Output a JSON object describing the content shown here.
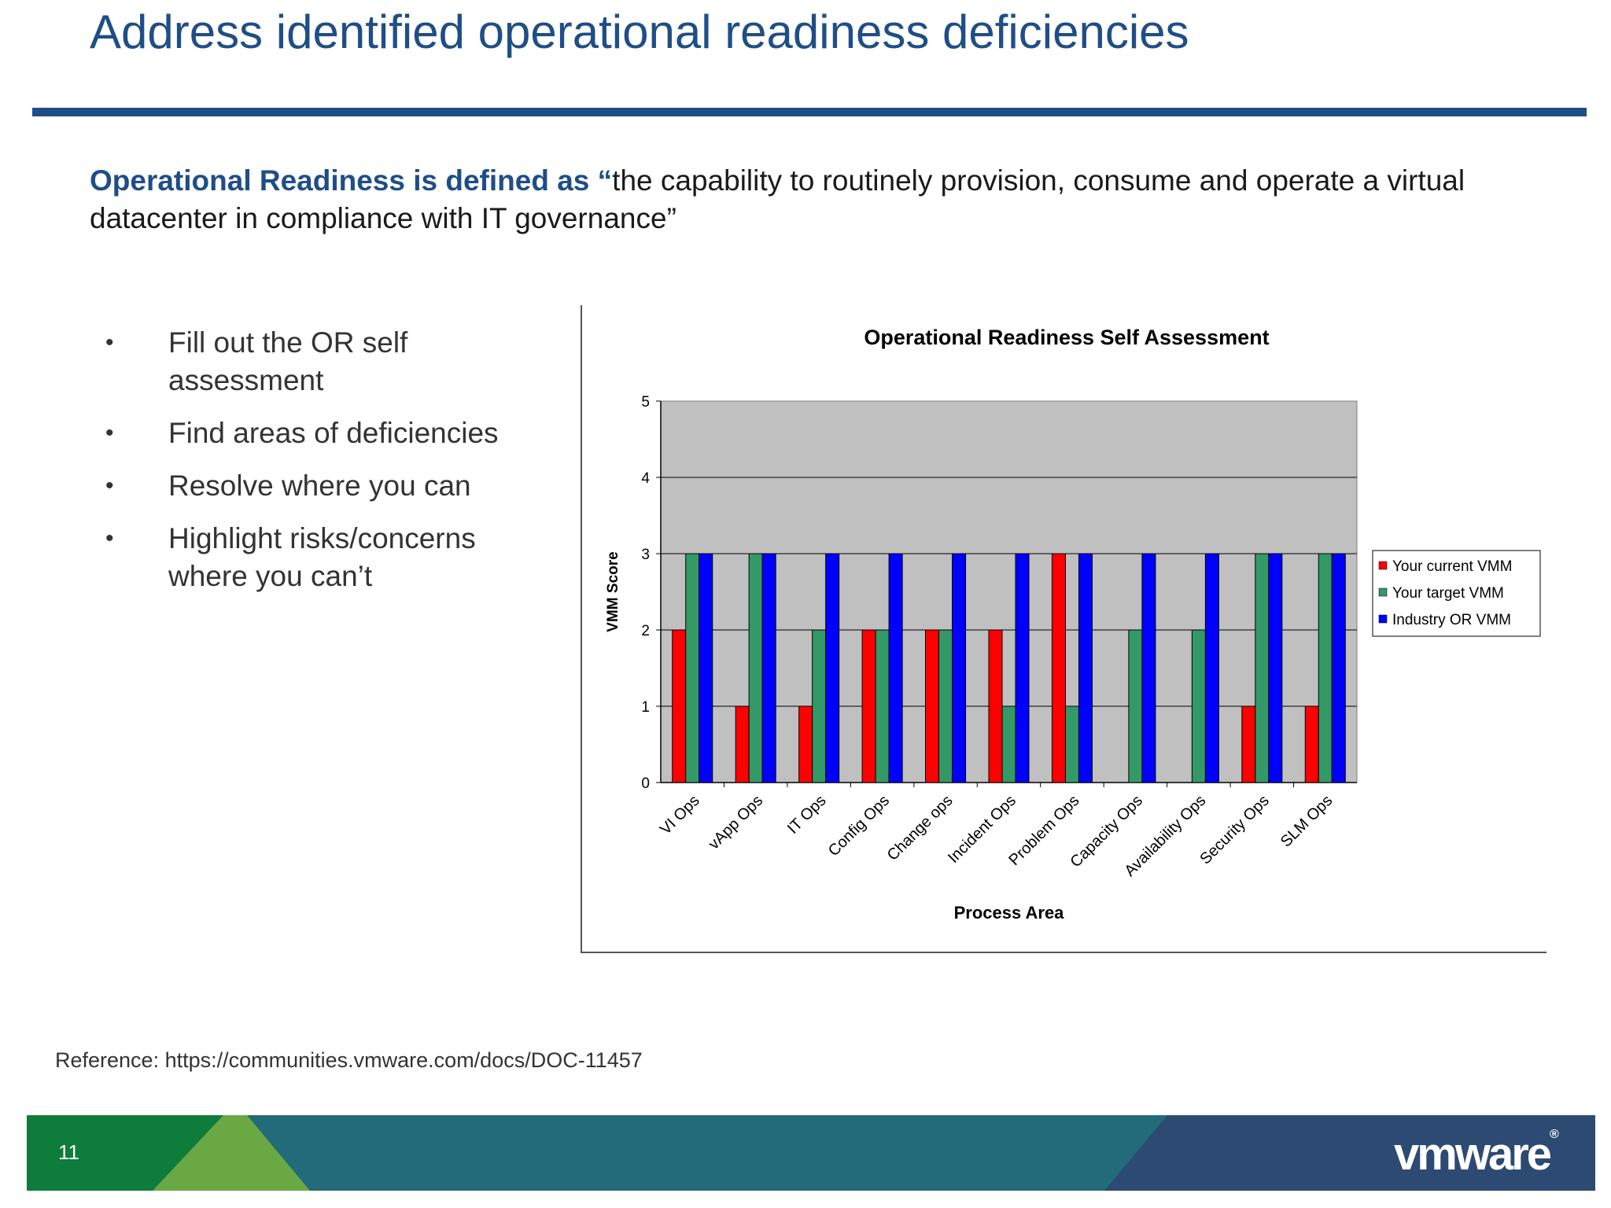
{
  "slide": {
    "title": "Address identified operational readiness deficiencies",
    "definition_lead": "Operational Readiness is defined as “",
    "definition_body": "the capability to routinely provision, consume and operate a virtual datacenter in compliance with IT governance”",
    "bullets": [
      "Fill out the OR self assessment",
      "Find areas of deficiencies",
      "Resolve where you can",
      "Highlight risks/concerns where you can’t"
    ],
    "bullet_symbol": "•",
    "reference": "Reference: https://communities.vmware.com/docs/DOC-11457",
    "page_number": "11",
    "logo": "vmware",
    "logo_mark": "®"
  },
  "colors": {
    "title_blue": "#1f4e87",
    "plot_bg": "#c0c0c0",
    "current": "#ff0000",
    "target": "#339966",
    "industry": "#0000ff"
  },
  "chart_data": {
    "type": "bar",
    "title": "Operational Readiness Self Assessment",
    "xlabel": "Process Area",
    "ylabel": "VMM Score",
    "ylim": [
      0,
      5
    ],
    "yticks": [
      0,
      1,
      2,
      3,
      4,
      5
    ],
    "grid": true,
    "legend": "right",
    "categories": [
      "VI Ops",
      "vApp Ops",
      "IT Ops",
      "Config Ops",
      "Change ops",
      "Incident Ops",
      "Problem Ops",
      "Capacity Ops",
      "Availability Ops",
      "Security Ops",
      "SLM Ops"
    ],
    "series": [
      {
        "name": "Your current VMM",
        "color": "#ff0000",
        "values": [
          2,
          1,
          1,
          2,
          2,
          2,
          3,
          0,
          0,
          1,
          1
        ]
      },
      {
        "name": "Your target VMM",
        "color": "#339966",
        "values": [
          3,
          3,
          2,
          2,
          2,
          1,
          1,
          2,
          2,
          3,
          3
        ]
      },
      {
        "name": "Industry OR VMM",
        "color": "#0000ff",
        "values": [
          3,
          3,
          3,
          3,
          3,
          3,
          3,
          3,
          3,
          3,
          3
        ]
      }
    ]
  }
}
